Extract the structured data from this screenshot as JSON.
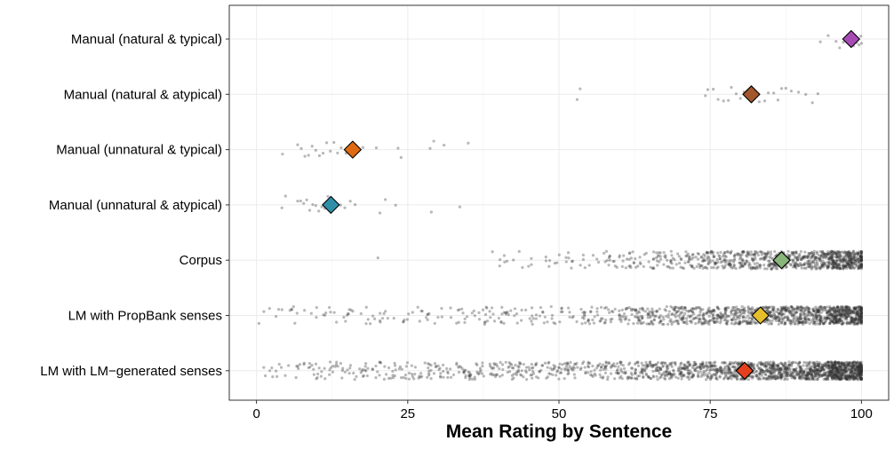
{
  "chart_data": {
    "type": "scatter",
    "title": "",
    "xlabel": "Mean Rating by Sentence",
    "ylabel": "",
    "xlim": [
      -4.5,
      104.5
    ],
    "xticks": [
      0,
      25,
      50,
      75,
      100
    ],
    "xtick_labels": [
      "0",
      "25",
      "50",
      "75",
      "100"
    ],
    "grid": true,
    "legend": "none",
    "categories": [
      "Manual (natural & typical)",
      "Manual (natural & atypical)",
      "Manual (unnatural & typical)",
      "Manual (unnatural & atypical)",
      "Corpus",
      "LM with PropBank senses",
      "LM with LM−generated senses"
    ],
    "series": [
      {
        "category": "Manual (natural & typical)",
        "mean": 98.3,
        "color": "#A54BB3",
        "points": [
          93.2,
          94.5,
          95.8,
          96.4,
          97.0,
          97.6,
          98.1,
          98.7,
          99.2,
          99.6,
          100.0,
          99.9
        ]
      },
      {
        "category": "Manual (natural & atypical)",
        "mean": 81.8,
        "color": "#A3562B",
        "points": [
          53.0,
          53.5,
          74.2,
          74.6,
          75.5,
          76.3,
          77.2,
          78.0,
          78.5,
          79.3,
          80.0,
          80.6,
          81.2,
          82.4,
          83.1,
          84.0,
          84.6,
          85.5,
          86.2,
          86.8,
          87.5,
          88.4,
          89.6,
          90.8,
          91.9,
          92.8
        ]
      },
      {
        "category": "Manual (unnatural & typical)",
        "mean": 15.9,
        "color": "#E06A12",
        "points": [
          4.3,
          6.8,
          7.4,
          8.0,
          8.6,
          9.2,
          9.8,
          10.4,
          11.0,
          11.6,
          12.2,
          12.8,
          13.4,
          14.0,
          14.8,
          16.4,
          17.6,
          19.8,
          23.4,
          23.9,
          28.7,
          29.3,
          31.0,
          35.0
        ]
      },
      {
        "category": "Manual (unnatural & atypical)",
        "mean": 12.3,
        "color": "#2F8FA8",
        "points": [
          4.2,
          4.8,
          6.8,
          7.3,
          7.8,
          8.3,
          8.8,
          9.3,
          9.8,
          10.3,
          10.8,
          11.3,
          11.8,
          12.8,
          13.3,
          13.9,
          14.6,
          15.5,
          16.3,
          20.4,
          21.3,
          23.0,
          28.9,
          33.6
        ]
      },
      {
        "category": "Corpus",
        "mean": 86.8,
        "color": "#88B57A",
        "points": []
      },
      {
        "category": "LM with PropBank senses",
        "mean": 83.3,
        "color": "#E5BE2B",
        "points": []
      },
      {
        "category": "LM with LM−generated senses",
        "mean": 80.7,
        "color": "#E5401E",
        "points": []
      }
    ]
  }
}
